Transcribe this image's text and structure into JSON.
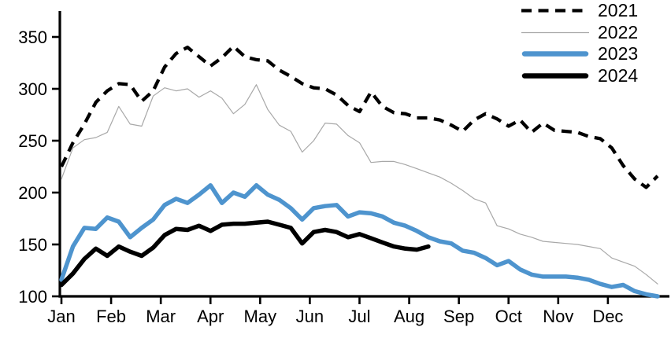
{
  "chart_data": {
    "type": "line",
    "title": "",
    "frequency_hint": "weekly points, Jan through Dec",
    "x_axis": {
      "tick_labels": [
        "Jan",
        "Feb",
        "Mar",
        "Apr",
        "May",
        "Jun",
        "Jul",
        "Aug",
        "Sep",
        "Oct",
        "Nov",
        "Dec"
      ]
    },
    "y_axis": {
      "ticks": [
        100,
        150,
        200,
        250,
        300,
        350
      ],
      "min": 100,
      "max": 360
    },
    "legend_position": "top-right",
    "series": [
      {
        "name": "2021",
        "color": "#000000",
        "style": "dashed",
        "width": 4.3,
        "values": [
          225,
          248,
          266,
          287,
          298,
          305,
          304,
          288,
          298,
          321,
          334,
          340,
          331,
          322,
          330,
          341,
          331,
          328,
          327,
          318,
          312,
          305,
          301,
          300,
          294,
          284,
          278,
          297,
          283,
          277,
          276,
          272,
          272,
          270,
          265,
          259,
          270,
          276,
          271,
          264,
          270,
          258,
          267,
          260,
          259,
          258,
          254,
          252,
          243,
          226,
          213,
          205,
          216
        ]
      },
      {
        "name": "2022",
        "color": "#a8a8a8",
        "style": "solid",
        "width": 1.2,
        "values": [
          213,
          243,
          251,
          253,
          258,
          283,
          266,
          264,
          293,
          301,
          298,
          300,
          292,
          298,
          291,
          276,
          285,
          304,
          280,
          265,
          259,
          239,
          250,
          267,
          266,
          255,
          248,
          229,
          230,
          230,
          227,
          223,
          219,
          215,
          209,
          202,
          194,
          190,
          168,
          165,
          160,
          157,
          153,
          152,
          151,
          150,
          148,
          146,
          137,
          133,
          129,
          121,
          112
        ]
      },
      {
        "name": "2023",
        "color": "#4E94CE",
        "style": "solid",
        "width": 5.5,
        "values": [
          116,
          148,
          166,
          165,
          176,
          172,
          157,
          166,
          174,
          188,
          194,
          190,
          198,
          207,
          190,
          200,
          196,
          207,
          198,
          193,
          185,
          174,
          185,
          187,
          188,
          177,
          181,
          180,
          177,
          171,
          168,
          163,
          157,
          153,
          151,
          144,
          142,
          137,
          130,
          134,
          126,
          121,
          119,
          119,
          119,
          118,
          116,
          112,
          109,
          111,
          105,
          102,
          100
        ]
      },
      {
        "name": "2024",
        "color": "#000000",
        "style": "solid",
        "width": 5.5,
        "values": [
          111,
          122,
          136,
          146,
          139,
          148,
          143,
          139,
          147,
          159,
          165,
          164,
          168,
          163,
          169,
          170,
          170,
          171,
          172,
          169,
          166,
          151,
          162,
          164,
          162,
          157,
          160,
          156,
          152,
          148,
          146,
          145,
          148
        ]
      }
    ]
  }
}
